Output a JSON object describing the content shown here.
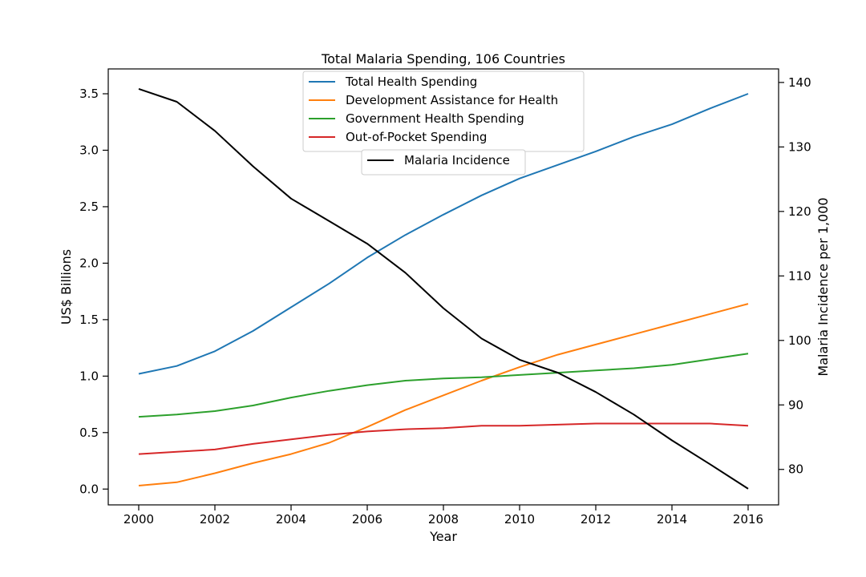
{
  "chart_data": {
    "type": "line",
    "title": "Total Malaria Spending, 106 Countries",
    "xlabel": "Year",
    "ylabel": "US$ Billions",
    "y2label": "Malaria Incidence per 1,000",
    "xlim": [
      1999.2,
      2016.8
    ],
    "ylim": [
      -0.14,
      3.72
    ],
    "y2lim": [
      74.5,
      142.1
    ],
    "x_ticks": [
      2000,
      2002,
      2004,
      2006,
      2008,
      2010,
      2012,
      2014,
      2016
    ],
    "y_ticks": [
      0.0,
      0.5,
      1.0,
      1.5,
      2.0,
      2.5,
      3.0,
      3.5
    ],
    "y_tick_labels": [
      "0.0",
      "0.5",
      "1.0",
      "1.5",
      "2.0",
      "2.5",
      "3.0",
      "3.5"
    ],
    "y2_ticks": [
      80,
      90,
      100,
      110,
      120,
      130,
      140
    ],
    "x": [
      2000,
      2001,
      2002,
      2003,
      2004,
      2005,
      2006,
      2007,
      2008,
      2009,
      2010,
      2011,
      2012,
      2013,
      2014,
      2015,
      2016
    ],
    "series": [
      {
        "name": "Total Health Spending",
        "axis": "left",
        "color": "#1f77b4",
        "values": [
          1.02,
          1.09,
          1.22,
          1.4,
          1.61,
          1.82,
          2.05,
          2.25,
          2.43,
          2.6,
          2.75,
          2.87,
          2.99,
          3.12,
          3.23,
          3.37,
          3.5
        ]
      },
      {
        "name": "Development Assistance for Health",
        "axis": "left",
        "color": "#ff7f0e",
        "values": [
          0.03,
          0.06,
          0.14,
          0.23,
          0.31,
          0.41,
          0.55,
          0.7,
          0.83,
          0.96,
          1.08,
          1.19,
          1.28,
          1.37,
          1.46,
          1.55,
          1.64
        ]
      },
      {
        "name": "Government Health Spending",
        "axis": "left",
        "color": "#2ca02c",
        "values": [
          0.64,
          0.66,
          0.69,
          0.74,
          0.81,
          0.87,
          0.92,
          0.96,
          0.98,
          0.99,
          1.01,
          1.03,
          1.05,
          1.07,
          1.1,
          1.15,
          1.2
        ]
      },
      {
        "name": "Out-of-Pocket Spending",
        "axis": "left",
        "color": "#d62728",
        "values": [
          0.31,
          0.33,
          0.35,
          0.4,
          0.44,
          0.48,
          0.51,
          0.53,
          0.54,
          0.56,
          0.56,
          0.57,
          0.58,
          0.58,
          0.58,
          0.58,
          0.56
        ]
      },
      {
        "name": "Malaria Incidence",
        "axis": "right",
        "color": "#000000",
        "values": [
          139.0,
          137.0,
          132.5,
          127.0,
          122.0,
          118.5,
          115.0,
          110.5,
          105.0,
          100.3,
          97.0,
          95.0,
          92.0,
          88.5,
          84.5,
          80.8,
          77.0
        ]
      }
    ],
    "legend_left": {
      "position": "upper-center",
      "entries": [
        "Total Health Spending",
        "Development Assistance for Health",
        "Government Health Spending",
        "Out-of-Pocket Spending"
      ]
    },
    "legend_right": {
      "position": "upper-center-below",
      "entries": [
        "Malaria Incidence"
      ]
    },
    "grid": false
  }
}
